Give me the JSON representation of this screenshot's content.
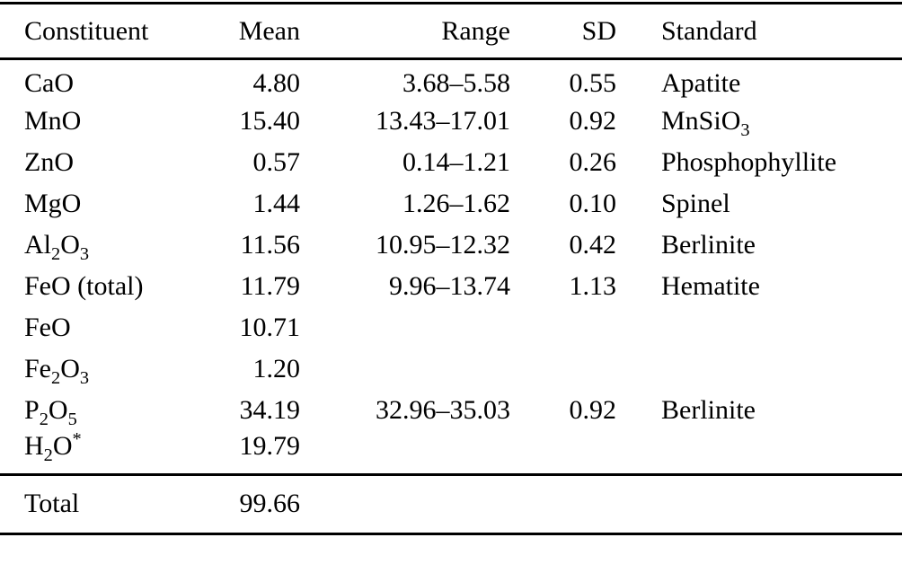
{
  "page": {
    "background_color": "#ffffff",
    "text_color": "#000000"
  },
  "table": {
    "headers": [
      "Constituent",
      "Mean",
      "Range",
      "SD",
      "Standard"
    ],
    "rows": [
      {
        "constituent": "CaO",
        "mean": "4.80",
        "range": "3.68–5.58",
        "sd": "0.55",
        "standard": "Apatite"
      },
      {
        "constituent": "MnO",
        "mean": "15.40",
        "range": "13.43–17.01",
        "sd": "0.92",
        "standard": "MnSiO_3"
      },
      {
        "constituent": "ZnO",
        "mean": "0.57",
        "range": "0.14–1.21",
        "sd": "0.26",
        "standard": "Phosphophyllite"
      },
      {
        "constituent": "MgO",
        "mean": "1.44",
        "range": "1.26–1.62",
        "sd": "0.10",
        "standard": "Spinel"
      },
      {
        "constituent": "Al_2O_3",
        "mean": "11.56",
        "range": "10.95–12.32",
        "sd": "0.42",
        "standard": "Berlinite"
      },
      {
        "constituent": "FeO (total)",
        "mean": "11.79",
        "range": "9.96–13.74",
        "sd": "1.13",
        "standard": "Hematite"
      },
      {
        "constituent": "FeO",
        "mean": "10.71",
        "range": "",
        "sd": "",
        "standard": ""
      },
      {
        "constituent": "Fe_2O_3",
        "mean": "1.20",
        "range": "",
        "sd": "",
        "standard": ""
      },
      {
        "constituent": "P_2O_5",
        "mean": "34.19",
        "range": "32.96–35.03",
        "sd": "0.92",
        "standard": "Berlinite"
      },
      {
        "constituent": "H_2O^*",
        "mean": "19.79",
        "range": "",
        "sd": "",
        "standard": ""
      }
    ],
    "footer": {
      "label": "Total",
      "mean": "99.66"
    }
  }
}
